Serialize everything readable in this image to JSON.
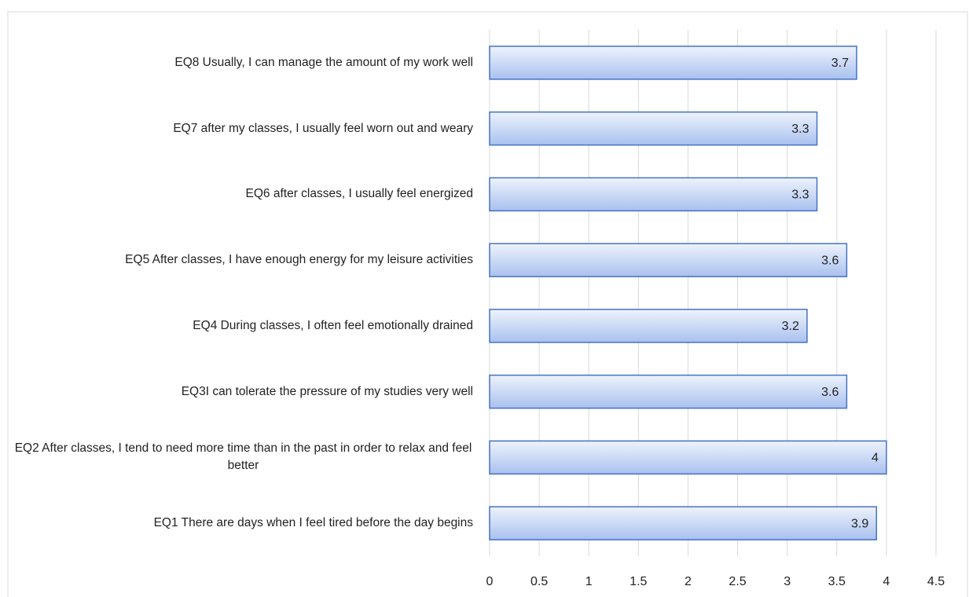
{
  "chart_data": {
    "type": "bar",
    "orientation": "horizontal",
    "categories": [
      "EQ1 There are days when I feel tired before the day begins",
      "EQ2 After classes, I tend to need more time than in the past in order to relax and feel better",
      "EQ3I can tolerate the pressure of my studies very well",
      "EQ4 During classes, I often feel emotionally drained",
      "EQ5 After classes, I have enough energy for my leisure activities",
      "EQ6 after classes, I usually feel energized",
      "EQ7 after my classes, I usually feel worn out and weary",
      "EQ8 Usually, I can manage the amount of my work well"
    ],
    "values": [
      3.9,
      4,
      3.6,
      3.2,
      3.6,
      3.3,
      3.3,
      3.7
    ],
    "color": "#4472c4",
    "xlim": [
      0,
      4.5
    ],
    "xticks": [
      0,
      0.5,
      1,
      1.5,
      2,
      2.5,
      3,
      3.5,
      4,
      4.5
    ],
    "grid": true
  }
}
